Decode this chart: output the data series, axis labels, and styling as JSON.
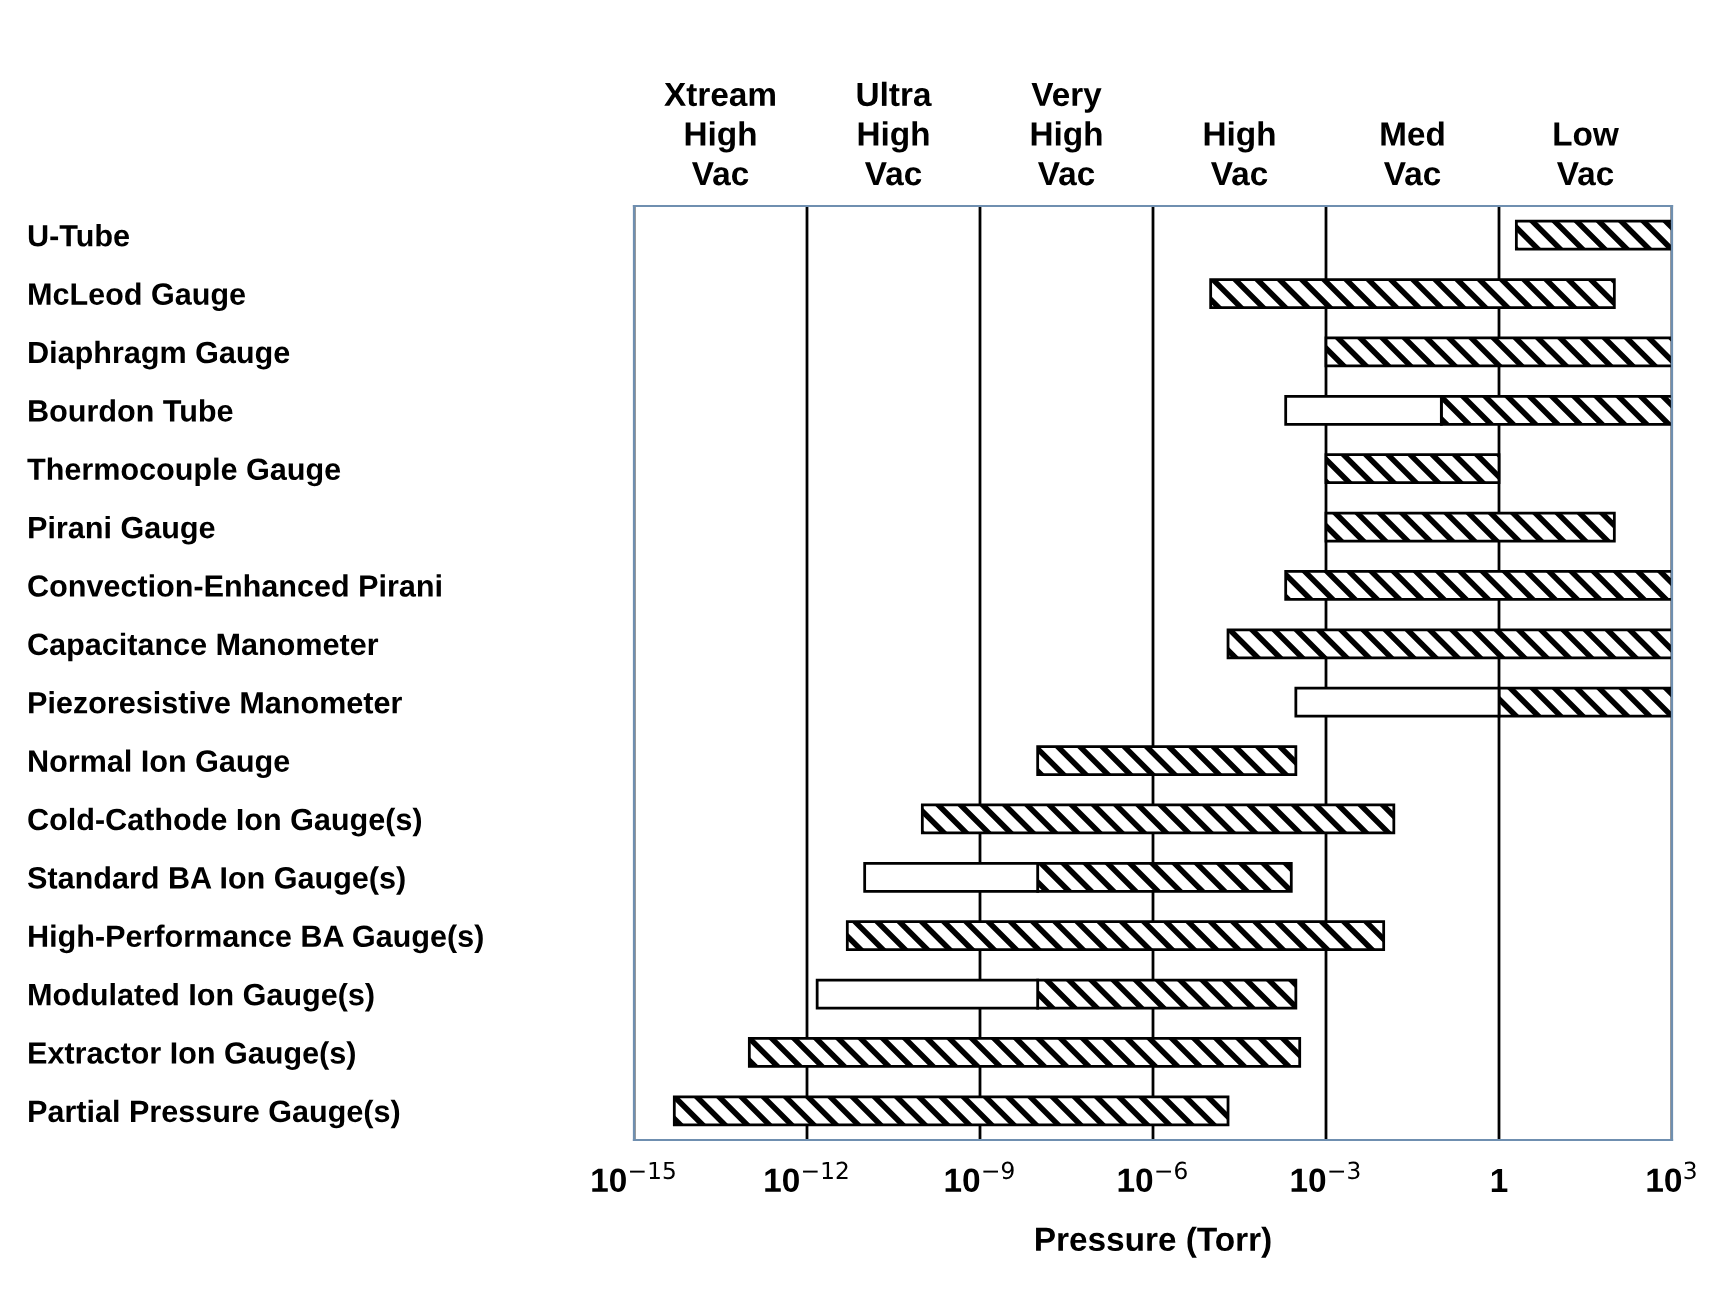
{
  "chart_data": {
    "type": "bar",
    "orientation": "horizontal",
    "log": "x",
    "xlabel": "Pressure (Torr)",
    "categories": [
      "U-Tube",
      "McLeod Gauge",
      "Diaphragm Gauge",
      "Bourdon Tube",
      "Thermocouple Gauge",
      "Pirani Gauge",
      "Convection-Enhanced Pirani",
      "Capacitance Manometer",
      "Piezoresistive Manometer",
      "Normal Ion Gauge",
      "Cold-Cathode Ion Gauge(s)",
      "Standard BA Ion Gauge(s)",
      "High-Performance BA Gauge(s)",
      "Modulated Ion Gauge(s)",
      "Extractor Ion Gauge(s)",
      "Partial Pressure Gauge(s)"
    ],
    "series": [
      {
        "color": "#000000",
        "base": [
          2,
          1e-05,
          0.001,
          0.1,
          0.001,
          0.001,
          0.0002,
          2e-05,
          1,
          1e-08,
          1e-10,
          1e-08,
          5e-12,
          1e-08,
          1e-13,
          5e-15
        ],
        "values": [
          998,
          99.99999,
          999.999,
          999.9,
          0.999,
          99.999,
          999.9998,
          999.99998,
          999,
          0.00029999,
          0.0149999999,
          0.00024999,
          0.009999999995,
          0.00029999,
          0.0003499999999999,
          1.9999999999995e-05
        ]
      },
      {
        "color": "#ffffff",
        "base": [
          null,
          null,
          null,
          0.0002,
          null,
          null,
          null,
          null,
          0.0003,
          null,
          null,
          1e-11,
          null,
          1.5e-12,
          null,
          null
        ],
        "values": [
          null,
          null,
          null,
          0.0998,
          null,
          null,
          null,
          null,
          0.9997,
          null,
          null,
          9.99e-09,
          null,
          9.9985e-09,
          null,
          null
        ]
      }
    ],
    "xlim": [
      1e-15,
      1000.0
    ],
    "xticks": [
      {
        "value": 1e-15,
        "label": "10$^{−15}$"
      },
      {
        "value": 1e-12,
        "label": "10$^{−12}$"
      },
      {
        "value": 1e-09,
        "label": "10$^{−9}$"
      },
      {
        "value": 1e-06,
        "label": "10$^{−6}$"
      },
      {
        "value": 0.001,
        "label": "10$^{−3}$"
      },
      1,
      {
        "value": 1000.0,
        "label": "10$^{3}$"
      }
    ],
    "grid": "x",
    "annotations": [
      "Xtream\nHigh\nVac",
      "Ultra\nHigh\nVac",
      "Very\nHigh\nVac",
      "High\nVac",
      "Med\nVac",
      "Low\nVac"
    ]
  }
}
